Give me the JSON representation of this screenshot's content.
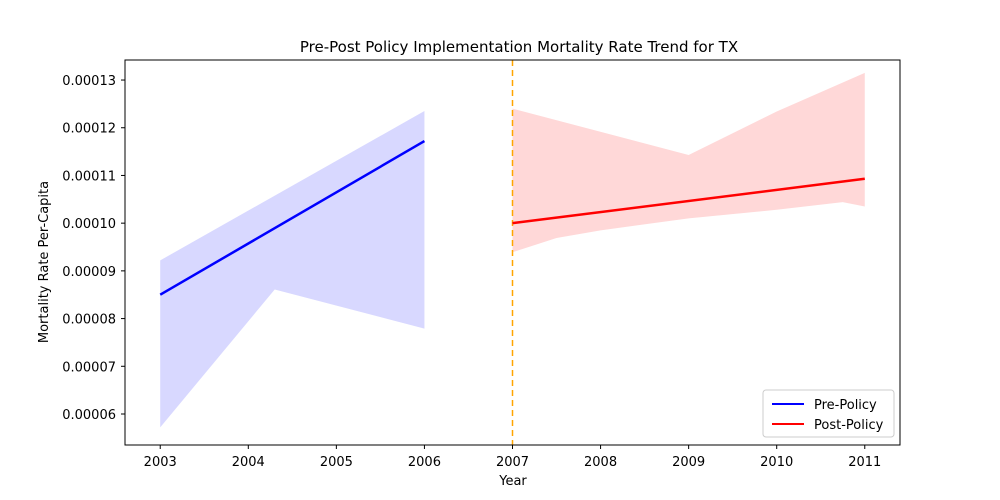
{
  "chart_data": {
    "type": "line",
    "title": "Pre-Post Policy Implementation Mortality Rate Trend for TX",
    "xlabel": "Year",
    "ylabel": "Mortality Rate Per-Capita",
    "xlim": [
      2002.6,
      2011.4
    ],
    "ylim": [
      5.35e-05,
      0.0001342
    ],
    "x_ticks": [
      2003,
      2004,
      2005,
      2006,
      2007,
      2008,
      2009,
      2010,
      2011
    ],
    "x_tick_labels": [
      "2003",
      "2004",
      "2005",
      "2006",
      "2007",
      "2008",
      "2009",
      "2010",
      "2011"
    ],
    "y_ticks": [
      6e-05,
      7e-05,
      8e-05,
      9e-05,
      0.0001,
      0.00011,
      0.00012,
      0.00013
    ],
    "y_tick_labels": [
      "0.00006",
      "0.00007",
      "0.00008",
      "0.00009",
      "0.00010",
      "0.00011",
      "0.00012",
      "0.00013"
    ],
    "policy_year": 2007,
    "policy_line_color": "#ffa500",
    "grid": false,
    "legend_position": "lower right",
    "series": [
      {
        "name": "Pre-Policy",
        "color": "#0000ff",
        "band_color": "#d8d8ff",
        "x": [
          2003,
          2006
        ],
        "y": [
          8.5e-05,
          0.0001172
        ],
        "band_upper": [
          [
            2003,
            9.22e-05
          ],
          [
            2006,
            0.0001235
          ]
        ],
        "band_lower": [
          [
            2003,
            5.72e-05
          ],
          [
            2004.3,
            8.61e-05
          ],
          [
            2006,
            7.79e-05
          ]
        ]
      },
      {
        "name": "Post-Policy",
        "color": "#ff0000",
        "band_color": "#ffd8d8",
        "x": [
          2007,
          2011
        ],
        "y": [
          0.0001,
          0.0001093
        ],
        "band_upper": [
          [
            2007,
            0.000124
          ],
          [
            2009,
            0.0001143
          ],
          [
            2010,
            0.0001234
          ],
          [
            2011,
            0.0001315
          ]
        ],
        "band_lower": [
          [
            2007,
            9.39e-05
          ],
          [
            2007.5,
            9.69e-05
          ],
          [
            2008,
            9.85e-05
          ],
          [
            2009,
            0.000101
          ],
          [
            2010,
            0.0001028
          ],
          [
            2010.75,
            0.0001044
          ],
          [
            2011,
            0.0001035
          ]
        ]
      }
    ]
  }
}
